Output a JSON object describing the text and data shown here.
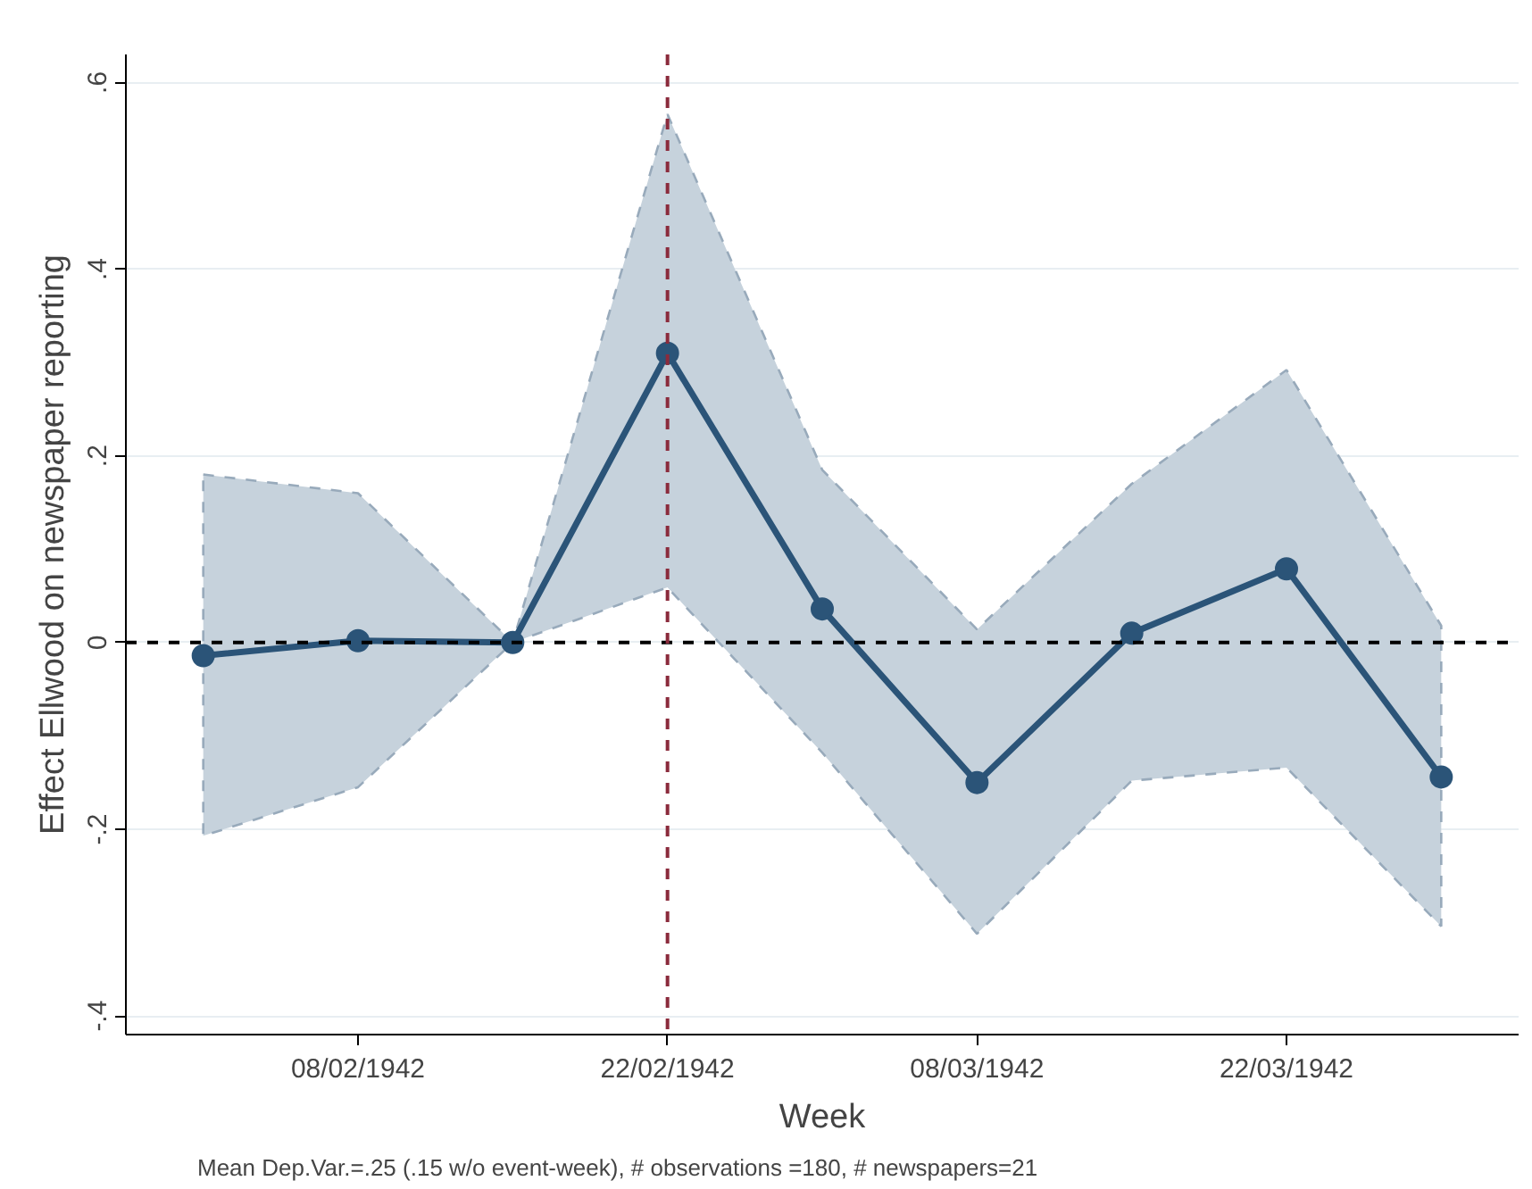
{
  "chart_data": {
    "type": "line",
    "xlabel": "Week",
    "ylabel": "Effect Ellwood on newspaper reporting",
    "x": [
      "1942-02-01",
      "1942-02-08",
      "1942-02-15",
      "1942-02-22",
      "1942-03-01",
      "1942-03-08",
      "1942-03-15",
      "1942-03-22",
      "1942-03-29"
    ],
    "series": [
      {
        "color": "#2b5478",
        "values": [
          -0.014,
          0.002,
          0.0,
          0.31,
          0.036,
          -0.15,
          0.01,
          0.079,
          -0.144
        ],
        "lower": [
          -0.207,
          -0.155,
          0.0,
          0.059,
          -0.118,
          -0.312,
          -0.148,
          -0.134,
          -0.304
        ],
        "upper": [
          0.18,
          0.16,
          0.0,
          0.566,
          0.185,
          0.014,
          0.17,
          0.292,
          0.018
        ]
      }
    ],
    "xlim": [
      "1942-01-28T12:00",
      "1942-04-01T12:00"
    ],
    "xticks": [
      {
        "value": "1942-02-08",
        "label": "08/02/1942"
      },
      {
        "value": "1942-02-22",
        "label": "22/02/1942"
      },
      {
        "value": "1942-03-08",
        "label": "08/03/1942"
      },
      {
        "value": "1942-03-22",
        "label": "22/03/1942"
      }
    ],
    "ylim": [
      -0.42,
      0.63
    ],
    "yticks": [
      {
        "value": -0.4,
        "label": "-.4"
      },
      {
        "value": -0.2,
        "label": "-.2"
      },
      0,
      {
        "value": 0.2,
        "label": ".2"
      },
      {
        "value": 0.4,
        "label": ".4"
      },
      {
        "value": 0.6,
        "label": ".6"
      }
    ],
    "ref_lines": [
      {
        "axis": "y",
        "value": 0,
        "color": "#000000",
        "line_style": "dashed"
      },
      {
        "axis": "x",
        "value": "1942-02-22",
        "color": "#8b2b3c",
        "line_style": "dashed"
      }
    ],
    "grid": "y",
    "marker": "circle",
    "line_style": "solid",
    "annotations": [
      "Mean Dep.Var.=.25 (.15 w/o event-week), # observations =180, # newspapers=21"
    ]
  }
}
